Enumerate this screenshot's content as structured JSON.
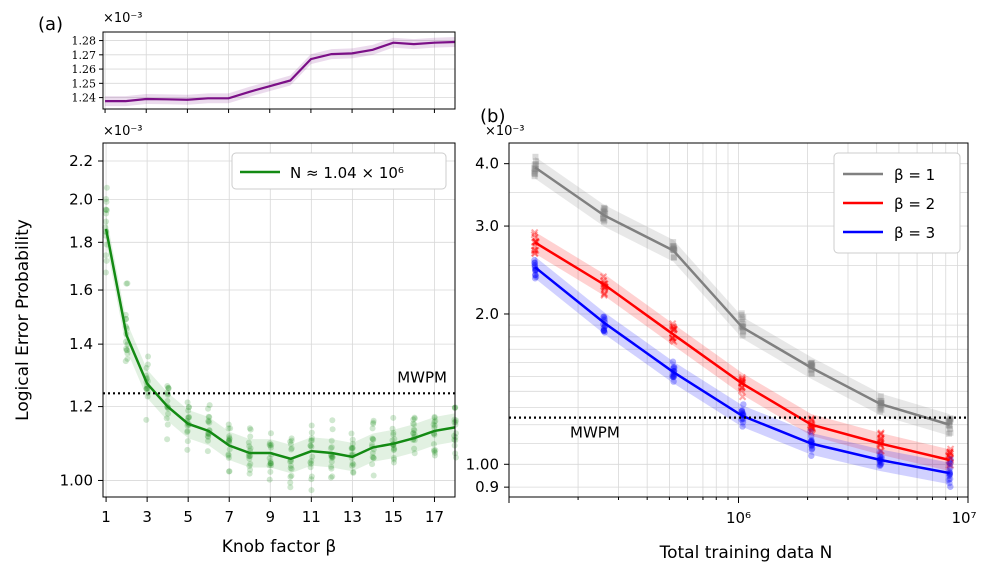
{
  "panel_labels": {
    "a": "(a)",
    "b": "(b)"
  },
  "colors": {
    "purple": "#7b0f87",
    "green": "#138a13",
    "gray": "#808080",
    "red": "#ff0000",
    "blue": "#0000ff",
    "reference": "#000000"
  },
  "chart_data": [
    {
      "id": "a_top",
      "type": "line",
      "scale_label": "×10⁻³",
      "x": [
        1,
        2,
        3,
        4,
        5,
        6,
        7,
        8,
        9,
        10,
        11,
        12,
        13,
        14,
        15,
        16,
        17,
        18
      ],
      "y": [
        1.2375,
        1.2375,
        1.239,
        1.2388,
        1.2385,
        1.2395,
        1.2395,
        1.244,
        1.248,
        1.252,
        1.267,
        1.2705,
        1.271,
        1.2735,
        1.2785,
        1.2775,
        1.2785,
        1.279
      ],
      "band_halfwidth": 0.0035,
      "xlim": [
        0.9,
        18
      ],
      "ylim": [
        1.232,
        1.286
      ],
      "yticks": [
        1.24,
        1.25,
        1.26,
        1.27,
        1.28
      ],
      "yticklabels": [
        "1.24",
        "1.25",
        "1.26",
        "1.27",
        "1.28"
      ],
      "xticks": [
        1,
        3,
        5,
        7,
        9,
        11,
        13,
        15,
        17
      ]
    },
    {
      "id": "a_main",
      "type": "line",
      "scale_label": "×10⁻³",
      "xlabel": "Knob factor β",
      "ylabel": "Logical Error Probability",
      "legend": [
        "N ≈ 1.04 × 10⁶"
      ],
      "x": [
        1,
        2,
        3,
        4,
        5,
        6,
        7,
        8,
        9,
        10,
        11,
        12,
        13,
        14,
        15,
        16,
        17,
        18
      ],
      "y": [
        1.86,
        1.43,
        1.27,
        1.2,
        1.15,
        1.13,
        1.09,
        1.07,
        1.07,
        1.055,
        1.075,
        1.07,
        1.06,
        1.085,
        1.095,
        1.11,
        1.13,
        1.14
      ],
      "ylim": [
        0.96,
        2.3
      ],
      "xlim": [
        0.85,
        18
      ],
      "yticks": [
        1.0,
        1.2,
        1.4,
        1.6,
        1.8,
        2.0,
        2.2
      ],
      "yticklabels": [
        "1.00",
        "1.2",
        "1.4",
        "1.6",
        "1.8",
        "2.0",
        "2.2"
      ],
      "xticks": [
        1,
        3,
        5,
        7,
        9,
        11,
        13,
        15,
        17
      ],
      "xticklabels": [
        "1",
        "3",
        "5",
        "7",
        "9",
        "11",
        "13",
        "15",
        "17"
      ],
      "reference": {
        "label": "MWPM",
        "y": 1.24
      }
    },
    {
      "id": "b",
      "type": "line",
      "scale_label": "×10⁻³",
      "xlabel": "Total training data N",
      "xscale": "log",
      "yscale": "log",
      "x": [
        130000,
        260000,
        520000,
        1040000,
        2080000,
        4160000,
        8320000
      ],
      "series": [
        {
          "name": "β = 1",
          "color": "#808080",
          "values": [
            3.93,
            3.15,
            2.68,
            1.88,
            1.56,
            1.32,
            1.2
          ]
        },
        {
          "name": "β = 2",
          "color": "#ff0000",
          "values": [
            2.78,
            2.29,
            1.82,
            1.45,
            1.2,
            1.1,
            1.02
          ]
        },
        {
          "name": "β = 3",
          "color": "#0000ff",
          "values": [
            2.48,
            1.92,
            1.53,
            1.25,
            1.1,
            1.02,
            0.96
          ]
        }
      ],
      "xlim": [
        100000,
        10000000
      ],
      "ylim": [
        0.86,
        4.4
      ],
      "yticks": [
        0.9,
        1.0,
        2.0,
        3.0,
        4.0
      ],
      "yticklabels": [
        "0.9",
        "1.00",
        "2.0",
        "3.0",
        "4.0"
      ],
      "xticklabels": [
        "10⁶",
        "10⁷"
      ],
      "reference": {
        "label": "MWPM",
        "y": 1.24
      }
    }
  ]
}
